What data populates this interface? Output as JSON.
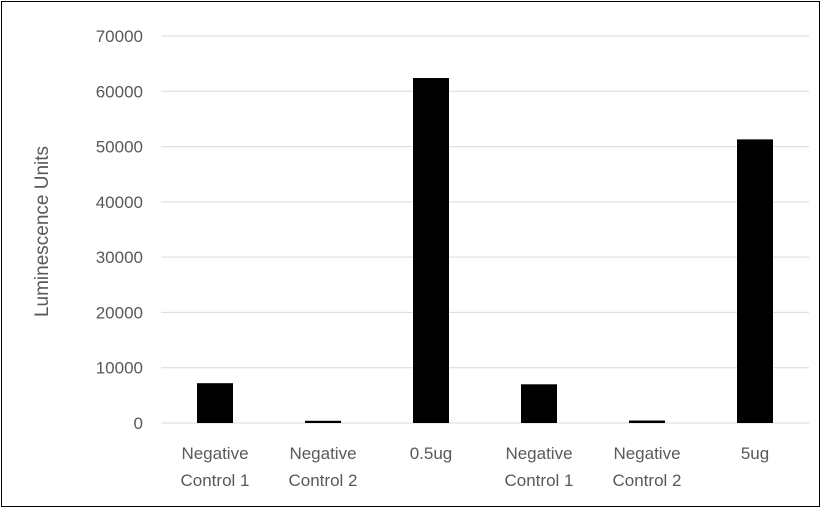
{
  "chart_data": {
    "type": "bar",
    "title": "",
    "xlabel": "",
    "ylabel": "Luminescence Units",
    "ylim": [
      0,
      70000
    ],
    "yticks": [
      0,
      10000,
      20000,
      30000,
      40000,
      50000,
      60000,
      70000
    ],
    "grid": true,
    "legend": "none",
    "categories": [
      [
        "Negative",
        "Control 1"
      ],
      [
        "Negative",
        "Control 2"
      ],
      [
        "0.5ug"
      ],
      [
        "Negative",
        "Control 1"
      ],
      [
        "Negative",
        "Control 2"
      ],
      [
        "5ug"
      ]
    ],
    "values": [
      7200,
      400,
      62400,
      7000,
      450,
      51300
    ],
    "bar_color": "#000000",
    "grid_color": "#d9d9d9",
    "text_color": "#595959"
  }
}
